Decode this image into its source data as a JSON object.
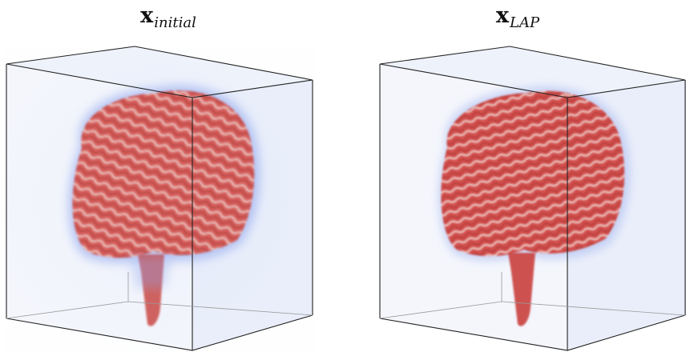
{
  "panels": [
    {
      "title_main": "x",
      "title_sub": "initial"
    },
    {
      "title_main": "x",
      "title_sub": "LAP"
    }
  ]
}
